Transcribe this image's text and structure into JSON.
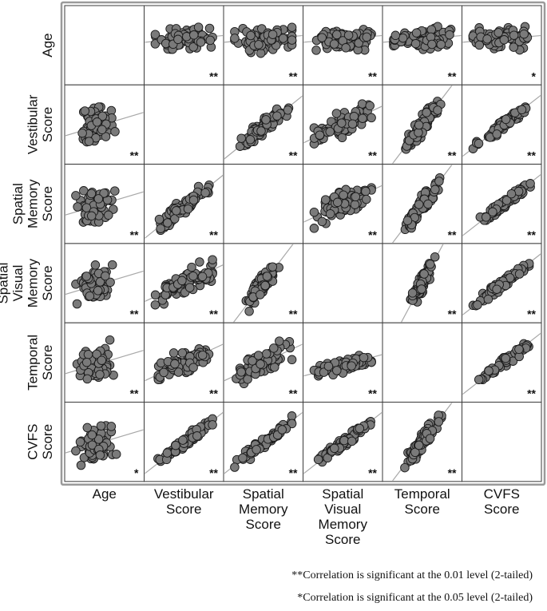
{
  "chart_data": {
    "type": "scatter",
    "variables": [
      {
        "key": "age",
        "label_lines": [
          "Age"
        ]
      },
      {
        "key": "vestibular",
        "label_lines": [
          "Vestibular",
          "Score"
        ]
      },
      {
        "key": "spatial_memory",
        "label_lines": [
          "Spatial",
          "Memory",
          "Score"
        ]
      },
      {
        "key": "spatial_visual_memory",
        "label_lines": [
          "Spatial",
          "Visual",
          "Memory",
          "Score"
        ]
      },
      {
        "key": "temporal",
        "label_lines": [
          "Temporal",
          "Score"
        ]
      },
      {
        "key": "cvfs",
        "label_lines": [
          "CVFS",
          "Score"
        ]
      }
    ],
    "significance": [
      [
        "",
        "**",
        "**",
        "**",
        "**",
        "*"
      ],
      [
        "**",
        "",
        "**",
        "**",
        "**",
        "**"
      ],
      [
        "**",
        "**",
        "",
        "**",
        "**",
        "**"
      ],
      [
        "**",
        "**",
        "**",
        "",
        "**",
        "**"
      ],
      [
        "**",
        "**",
        "**",
        "**",
        "",
        "**"
      ],
      [
        "*",
        "**",
        "**",
        "**",
        "**",
        ""
      ]
    ],
    "cell_patterns": [
      [
        null,
        "flat-wide",
        "flat-wide",
        "flat-wide",
        "flat-wide",
        "flat-wide"
      ],
      [
        "cluster-left",
        null,
        "strong",
        "medium",
        "steep",
        "tight"
      ],
      [
        "cluster-left",
        "strong",
        null,
        "medium",
        "steep",
        "tight"
      ],
      [
        "cluster-left",
        "medium",
        "steep",
        null,
        "very-steep",
        "tight"
      ],
      [
        "cluster-left",
        "medium",
        "medium",
        "flat-band",
        null,
        "tight"
      ],
      [
        "cluster-left",
        "tight",
        "tight",
        "tight",
        "steep",
        null
      ]
    ],
    "legend": {
      "double_star": "**Correlation is significant at the 0.01 level (2-tailed)",
      "single_star": "*Correlation is significant at the 0.05 level (2-tailed)"
    },
    "colors": {
      "point_fill": "#7a7a7a",
      "point_stroke": "#1a1a1a",
      "fit_line": "#a8a8a8",
      "grid": "#3a3a3a",
      "frame": "#9a9a9a"
    }
  }
}
